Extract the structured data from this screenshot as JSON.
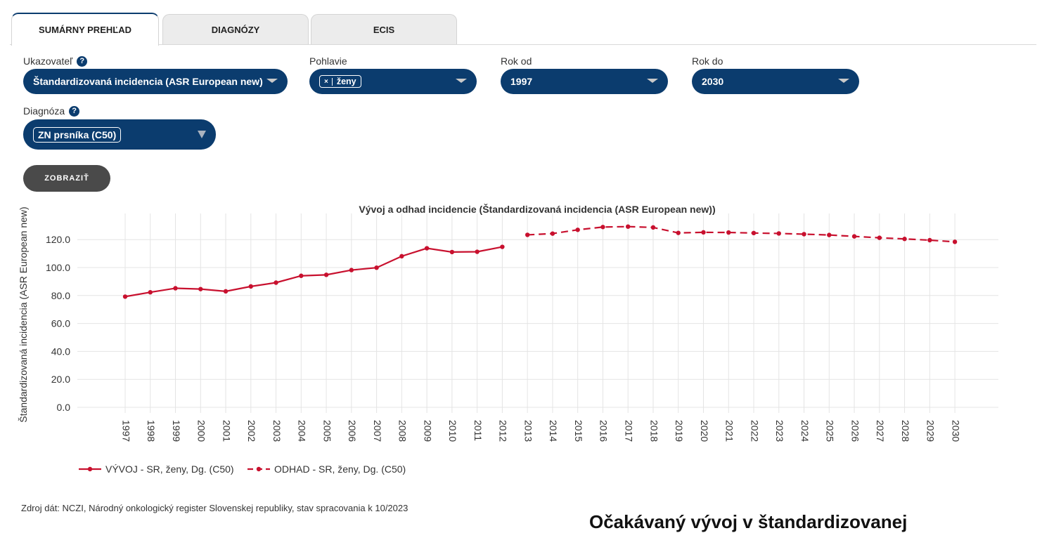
{
  "tabs": [
    {
      "label": "SUMÁRNY PREHĽAD",
      "active": true
    },
    {
      "label": "DIAGNÓZY",
      "active": false
    },
    {
      "label": "ECIS",
      "active": false
    }
  ],
  "filters": {
    "indicator": {
      "label": "Ukazovateľ",
      "help": "?",
      "value": "Štandardizovaná incidencia (ASR European new)"
    },
    "sex": {
      "label": "Pohlavie",
      "chip_remove": "×",
      "chip": "ženy"
    },
    "year_from": {
      "label": "Rok od",
      "value": "1997"
    },
    "year_to": {
      "label": "Rok do",
      "value": "2030"
    },
    "diagnosis": {
      "label": "Diagnóza",
      "help": "?",
      "chip": "ZN prsníka (C50)"
    }
  },
  "show_button": "ZOBRAZIŤ",
  "footer": "Zdroj dát: NCZI, Národný onkologický register Slovenskej republiky, stav spracovania k 10/2023",
  "cut_text": "Očakávaný vývoj v štandardizovanej",
  "colors": {
    "brand": "#0b3c6e",
    "series": "#c8102e",
    "button": "#4a4a4a"
  },
  "chart_data": {
    "type": "line",
    "title": "Vývoj a odhad incidencie (Štandardizovaná incidencia (ASR European new))",
    "ylabel": "Štandardizovaná incidencia (ASR European new)",
    "xlabel": "",
    "ylim": [
      0,
      130
    ],
    "yticks": [
      "0.0",
      "20.0",
      "40.0",
      "60.0",
      "80.0",
      "100.0",
      "120.0"
    ],
    "categories": [
      "1997",
      "1998",
      "1999",
      "2000",
      "2001",
      "2002",
      "2003",
      "2004",
      "2005",
      "2006",
      "2007",
      "2008",
      "2009",
      "2010",
      "2011",
      "2012",
      "2013",
      "2014",
      "2015",
      "2016",
      "2017",
      "2018",
      "2019",
      "2020",
      "2021",
      "2022",
      "2023",
      "2024",
      "2025",
      "2026",
      "2027",
      "2028",
      "2029",
      "2030"
    ],
    "grid": true,
    "legend_position": "bottom-left",
    "series": [
      {
        "name": "VÝVOJ - SR, ženy, Dg. (C50)",
        "style": "solid",
        "x": [
          "1997",
          "1998",
          "1999",
          "2000",
          "2001",
          "2002",
          "2003",
          "2004",
          "2005",
          "2006",
          "2007",
          "2008",
          "2009",
          "2010",
          "2011",
          "2012"
        ],
        "values": [
          79.2,
          82.3,
          85.2,
          84.6,
          83.0,
          86.5,
          89.2,
          94.1,
          94.8,
          98.2,
          99.9,
          108.1,
          113.8,
          111.1,
          111.3,
          114.8
        ]
      },
      {
        "name": "ODHAD - SR, ženy, Dg. (C50)",
        "style": "dashed",
        "x": [
          "2013",
          "2014",
          "2015",
          "2016",
          "2017",
          "2018",
          "2019",
          "2020",
          "2021",
          "2022",
          "2023",
          "2024",
          "2025",
          "2026",
          "2027",
          "2028",
          "2029",
          "2030"
        ],
        "values": [
          123.4,
          124.3,
          127.0,
          129.0,
          129.3,
          128.7,
          124.8,
          125.2,
          125.1,
          124.7,
          124.4,
          123.9,
          123.3,
          122.3,
          121.3,
          120.5,
          119.6,
          118.4
        ]
      }
    ]
  }
}
